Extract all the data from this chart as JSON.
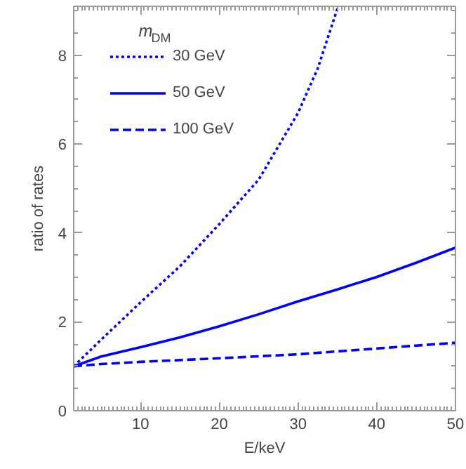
{
  "chart_data": {
    "type": "line",
    "xlabel": "E/keV",
    "ylabel": "ratio of rates",
    "legend_title": "m$_{DM}$",
    "xlim": [
      1.5,
      50
    ],
    "ylim": [
      0,
      9.1
    ],
    "xticks": [
      10,
      20,
      30,
      40,
      50
    ],
    "yticks": [
      0,
      2,
      4,
      6,
      8
    ],
    "grid": false,
    "legend": "top left",
    "series": [
      {
        "name": "30 GeV",
        "color": "#0000ff",
        "line_style": "dotted",
        "x": [
          1.5,
          5,
          10,
          15,
          20,
          25,
          30,
          32.5,
          35.1
        ],
        "values": [
          1.0,
          1.6,
          2.44,
          3.25,
          4.2,
          5.2,
          6.7,
          7.7,
          9.1
        ]
      },
      {
        "name": "50 GeV",
        "color": "#0000ff",
        "line_style": "solid",
        "x": [
          1.5,
          5,
          10,
          15,
          20,
          25,
          30,
          35,
          40,
          45,
          50
        ],
        "values": [
          1.0,
          1.22,
          1.43,
          1.65,
          1.9,
          2.17,
          2.46,
          2.73,
          3.01,
          3.33,
          3.67
        ]
      },
      {
        "name": "100 GeV",
        "color": "#0000ff",
        "line_style": "dashed",
        "x": [
          1.5,
          5,
          10,
          20,
          30,
          40,
          50
        ],
        "values": [
          1.0,
          1.05,
          1.1,
          1.18,
          1.27,
          1.4,
          1.53
        ]
      }
    ]
  }
}
